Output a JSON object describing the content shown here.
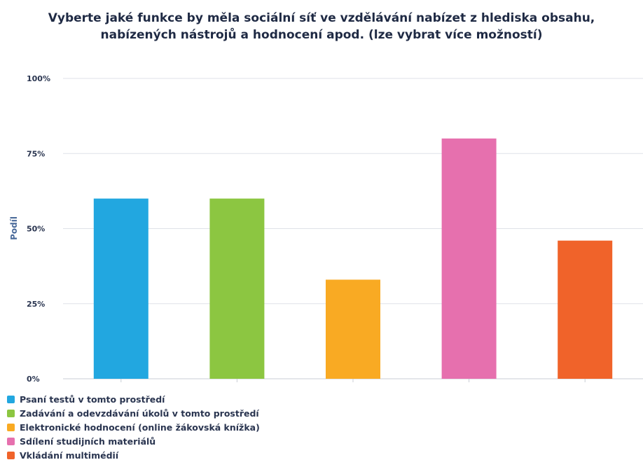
{
  "chart_data": {
    "type": "bar",
    "title_lines": [
      "Vyberte jaké funkce by měla sociální síť ve vzdělávání nabízet z hlediska obsahu,",
      "nabízených nástrojů a hodnocení apod. (lze vybrat více možností)"
    ],
    "ylabel": "Podíl",
    "xlabel": "",
    "ylim": [
      0,
      100
    ],
    "yticks": [
      "100%",
      "75%",
      "50%",
      "25%",
      "0%"
    ],
    "ytick_values": [
      100,
      75,
      50,
      25,
      0
    ],
    "grid": true,
    "legend_position": "bottom-left",
    "categories": [
      "Psaní testů v tomto prostředí",
      "Zadávání a odevzdávání úkolů v tomto prostředí",
      "Elektronické hodnocení (online žákovská knížka)",
      "Sdílení studijních materiálů",
      "Vkládání multimédií"
    ],
    "values": [
      60,
      60,
      33,
      80,
      46
    ],
    "colors": [
      "#22a7e0",
      "#8cc641",
      "#f9aa23",
      "#e670ae",
      "#f0632a"
    ]
  }
}
